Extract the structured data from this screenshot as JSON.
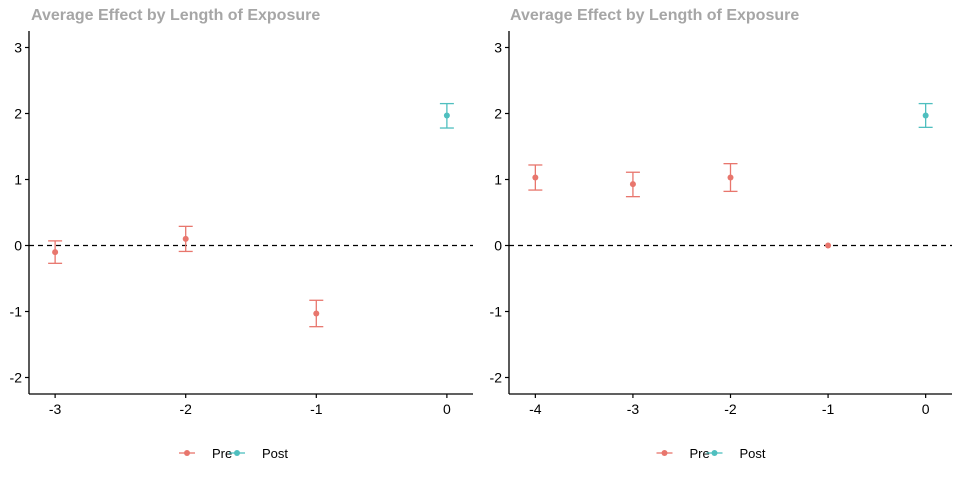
{
  "colors": {
    "pre": "#e8766d",
    "post": "#4fbfbf",
    "axis": "#000000",
    "title": "#a6a6a6"
  },
  "legend": {
    "placement": "bottom",
    "items": [
      {
        "label": "Pre",
        "key": "pre"
      },
      {
        "label": "Post",
        "key": "post"
      }
    ]
  },
  "chart_data": [
    {
      "type": "scatter",
      "title": "Average Effect by Length of Exposure",
      "xlabel": "",
      "ylabel": "",
      "xlim": [
        -3.2,
        0.2
      ],
      "ylim": [
        -2.25,
        3.25
      ],
      "x_ticks": [
        -3,
        -2,
        -1,
        0
      ],
      "x_tick_labels": [
        "-3",
        "-2",
        "-1",
        "0"
      ],
      "y_ticks": [
        -2,
        -1,
        0,
        1,
        2,
        3
      ],
      "y_tick_labels": [
        "-2",
        "-1",
        "0",
        "1",
        "2",
        "3"
      ],
      "reference_line_y": 0,
      "grid": false,
      "series": [
        {
          "name": "Pre",
          "key": "pre",
          "points": [
            {
              "x": -3,
              "y": -0.1,
              "lo": -0.27,
              "hi": 0.07
            },
            {
              "x": -2,
              "y": 0.1,
              "lo": -0.09,
              "hi": 0.29
            },
            {
              "x": -1,
              "y": -1.03,
              "lo": -1.23,
              "hi": -0.83
            }
          ]
        },
        {
          "name": "Post",
          "key": "post",
          "points": [
            {
              "x": 0,
              "y": 1.97,
              "lo": 1.78,
              "hi": 2.15
            }
          ]
        }
      ]
    },
    {
      "type": "scatter",
      "title": "Average Effect by Length of Exposure",
      "xlabel": "",
      "ylabel": "",
      "xlim": [
        -4.27,
        0.27
      ],
      "ylim": [
        -2.25,
        3.25
      ],
      "x_ticks": [
        -4,
        -3,
        -2,
        -1,
        0
      ],
      "x_tick_labels": [
        "-4",
        "-3",
        "-2",
        "-1",
        "0"
      ],
      "y_ticks": [
        -2,
        -1,
        0,
        1,
        2,
        3
      ],
      "y_tick_labels": [
        "-2",
        "-1",
        "0",
        "1",
        "2",
        "3"
      ],
      "reference_line_y": 0,
      "grid": false,
      "series": [
        {
          "name": "Pre",
          "key": "pre",
          "points": [
            {
              "x": -4,
              "y": 1.03,
              "lo": 0.84,
              "hi": 1.22
            },
            {
              "x": -3,
              "y": 0.93,
              "lo": 0.74,
              "hi": 1.11
            },
            {
              "x": -2,
              "y": 1.03,
              "lo": 0.82,
              "hi": 1.24
            },
            {
              "x": -1,
              "y": 0.0,
              "lo": 0.0,
              "hi": 0.0
            }
          ]
        },
        {
          "name": "Post",
          "key": "post",
          "points": [
            {
              "x": 0,
              "y": 1.97,
              "lo": 1.79,
              "hi": 2.15
            }
          ]
        }
      ]
    }
  ]
}
